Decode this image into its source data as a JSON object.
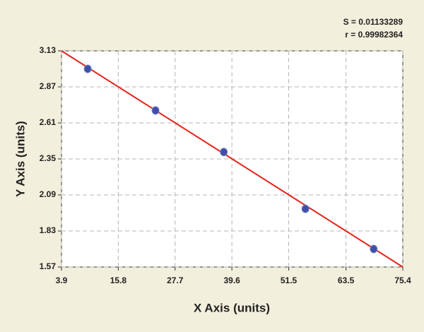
{
  "chart_data": {
    "type": "scatter",
    "annotations": [
      "S = 0.01133289",
      "r = 0.99982364"
    ],
    "x_label": "X Axis (units)",
    "y_label": "Y Axis (units)",
    "x": [
      9.4,
      23.6,
      37.9,
      55.0,
      69.3
    ],
    "y": [
      3.0,
      2.7,
      2.4,
      1.99,
      1.7
    ],
    "color": "#3f4fa8",
    "fit": {
      "x": [
        3.9,
        75.4
      ],
      "y": [
        3.13,
        1.57
      ],
      "color": "#e3241b"
    },
    "xlim": [
      3.9,
      75.4
    ],
    "xticks": [
      3.9,
      15.8,
      27.7,
      39.6,
      51.5,
      63.5,
      75.4
    ],
    "ylim": [
      1.57,
      3.13
    ],
    "yticks": [
      1.57,
      1.83,
      2.09,
      2.35,
      2.61,
      2.87,
      3.13
    ],
    "grid": true
  }
}
